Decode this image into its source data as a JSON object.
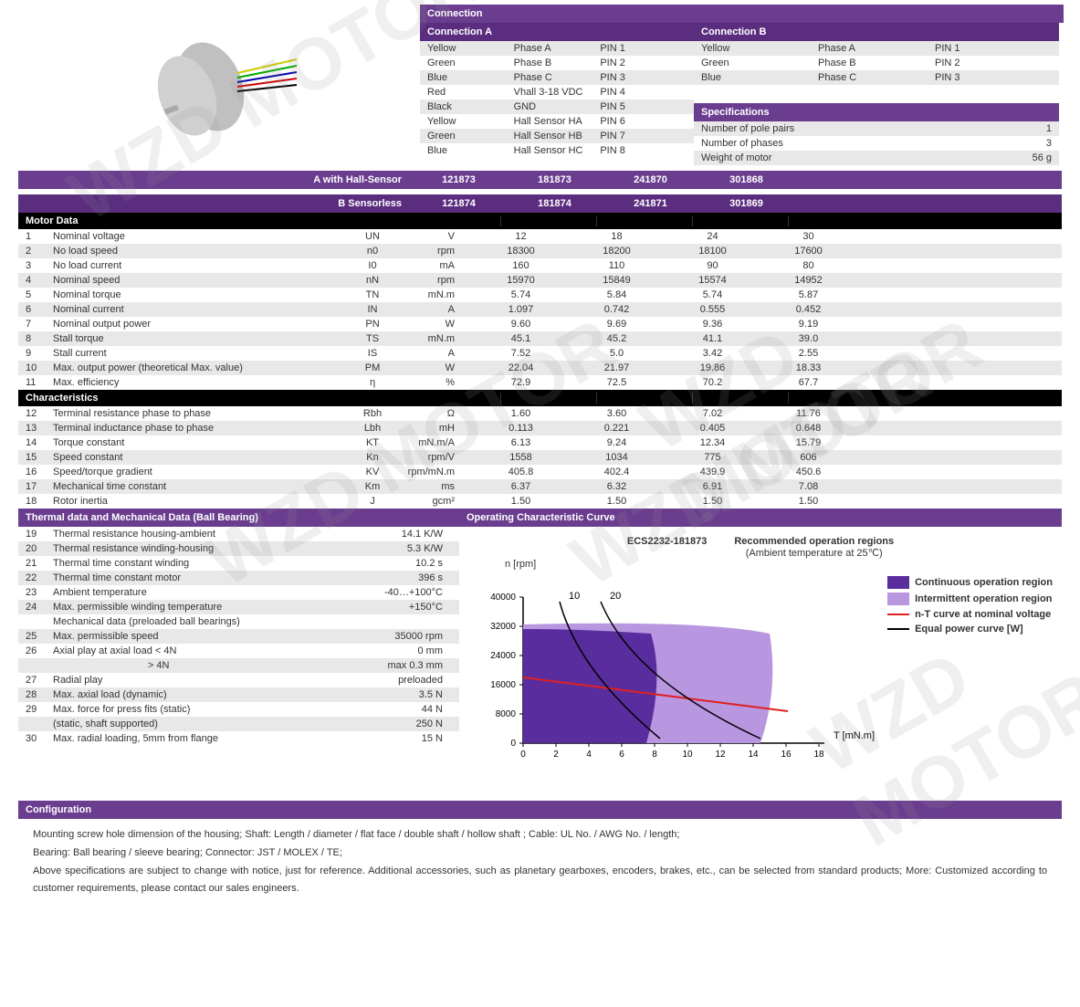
{
  "watermark_text": "WZD MOTOR",
  "connection_header": "Connection",
  "conn_a_header": "Connection A",
  "conn_b_header": "Connection B",
  "conn_a_rows": [
    {
      "color": "Yellow",
      "phase": "Phase A",
      "pin": "PIN 1"
    },
    {
      "color": "Green",
      "phase": "Phase B",
      "pin": "PIN 2"
    },
    {
      "color": "Blue",
      "phase": "Phase C",
      "pin": "PIN 3"
    },
    {
      "color": "Red",
      "phase": "Vhall 3-18 VDC",
      "pin": "PIN 4"
    },
    {
      "color": "Black",
      "phase": "GND",
      "pin": "PIN 5"
    },
    {
      "color": "Yellow",
      "phase": "Hall Sensor HA",
      "pin": "PIN 6"
    },
    {
      "color": "Green",
      "phase": "Hall Sensor HB",
      "pin": "PIN 7"
    },
    {
      "color": "Blue",
      "phase": "Hall Sensor HC",
      "pin": "PIN 8"
    }
  ],
  "conn_b_rows": [
    {
      "color": "Yellow",
      "phase": "Phase A",
      "pin": "PIN 1"
    },
    {
      "color": "Green",
      "phase": "Phase B",
      "pin": "PIN 2"
    },
    {
      "color": "Blue",
      "phase": "Phase C",
      "pin": "PIN 3"
    }
  ],
  "specifications_header": "Specifications",
  "specs": [
    {
      "label": "Number of pole pairs",
      "val": "1"
    },
    {
      "label": "Number of phases",
      "val": "3"
    },
    {
      "label": "Weight of motor",
      "val": "56 g"
    }
  ],
  "variant_a_label": "A with Hall-Sensor",
  "variant_b_label": "B Sensorless",
  "variants_a": [
    "121873",
    "181873",
    "241870",
    "301868"
  ],
  "variants_b": [
    "121874",
    "181874",
    "241871",
    "301869"
  ],
  "motor_data_header": "Motor Data",
  "motor_data": [
    {
      "n": "1",
      "name": "Nominal voltage",
      "sym": "UN",
      "unit": "V",
      "vals": [
        "12",
        "18",
        "24",
        "30"
      ]
    },
    {
      "n": "2",
      "name": "No load speed",
      "sym": "n0",
      "unit": "rpm",
      "vals": [
        "18300",
        "18200",
        "18100",
        "17600"
      ]
    },
    {
      "n": "3",
      "name": "No load current",
      "sym": "I0",
      "unit": "mA",
      "vals": [
        "160",
        "110",
        "90",
        "80"
      ]
    },
    {
      "n": "4",
      "name": "Nominal speed",
      "sym": "nN",
      "unit": "rpm",
      "vals": [
        "15970",
        "15849",
        "15574",
        "14952"
      ]
    },
    {
      "n": "5",
      "name": "Nominal torque",
      "sym": "TN",
      "unit": "mN.m",
      "vals": [
        "5.74",
        "5.84",
        "5.74",
        "5.87"
      ]
    },
    {
      "n": "6",
      "name": "Nominal current",
      "sym": "IN",
      "unit": "A",
      "vals": [
        "1.097",
        "0.742",
        "0.555",
        "0.452"
      ]
    },
    {
      "n": "7",
      "name": "Nominal output power",
      "sym": "PN",
      "unit": "W",
      "vals": [
        "9.60",
        "9.69",
        "9.36",
        "9.19"
      ]
    },
    {
      "n": "8",
      "name": "Stall torque",
      "sym": "TS",
      "unit": "mN.m",
      "vals": [
        "45.1",
        "45.2",
        "41.1",
        "39.0"
      ]
    },
    {
      "n": "9",
      "name": "Stall current",
      "sym": "IS",
      "unit": "A",
      "vals": [
        "7.52",
        "5.0",
        "3.42",
        "2.55"
      ]
    },
    {
      "n": "10",
      "name": "Max. output power (theoretical Max. value)",
      "sym": "PM",
      "unit": "W",
      "vals": [
        "22.04",
        "21.97",
        "19.86",
        "18.33"
      ]
    },
    {
      "n": "11",
      "name": "Max. efficiency",
      "sym": "η",
      "unit": "%",
      "vals": [
        "72.9",
        "72.5",
        "70.2",
        "67.7"
      ]
    }
  ],
  "characteristics_header": "Characteristics",
  "characteristics": [
    {
      "n": "12",
      "name": "Terminal resistance phase to phase",
      "sym": "Rbh",
      "unit": "Ω",
      "vals": [
        "1.60",
        "3.60",
        "7.02",
        "11.76"
      ]
    },
    {
      "n": "13",
      "name": "Terminal inductance phase to phase",
      "sym": "Lbh",
      "unit": "mH",
      "vals": [
        "0.113",
        "0.221",
        "0.405",
        "0.648"
      ]
    },
    {
      "n": "14",
      "name": "Torque constant",
      "sym": "KT",
      "unit": "mN.m/A",
      "vals": [
        "6.13",
        "9.24",
        "12.34",
        "15.79"
      ]
    },
    {
      "n": "15",
      "name": "Speed constant",
      "sym": "Kn",
      "unit": "rpm/V",
      "vals": [
        "1558",
        "1034",
        "775",
        "606"
      ]
    },
    {
      "n": "16",
      "name": "Speed/torque gradient",
      "sym": "KV",
      "unit": "rpm/mN.m",
      "vals": [
        "405.8",
        "402.4",
        "439.9",
        "450.6"
      ]
    },
    {
      "n": "17",
      "name": "Mechanical time constant",
      "sym": "Km",
      "unit": "ms",
      "vals": [
        "6.37",
        "6.32",
        "6.91",
        "7.08"
      ]
    },
    {
      "n": "18",
      "name": "Rotor inertia",
      "sym": "J",
      "unit": "gcm²",
      "vals": [
        "1.50",
        "1.50",
        "1.50",
        "1.50"
      ]
    }
  ],
  "thermal_header": "Thermal data and Mechanical Data (Ball Bearing)",
  "operating_header": "Operating Characteristic Curve",
  "thermal_rows": [
    {
      "n": "19",
      "name": "Thermal resistance housing-ambient",
      "val": "14.1 K/W"
    },
    {
      "n": "20",
      "name": "Thermal resistance winding-housing",
      "val": "5.3 K/W"
    },
    {
      "n": "21",
      "name": "Thermal time constant winding",
      "val": "10.2 s"
    },
    {
      "n": "22",
      "name": "Thermal time constant motor",
      "val": "396 s"
    },
    {
      "n": "23",
      "name": "Ambient temperature",
      "val": "-40…+100°C"
    },
    {
      "n": "24",
      "name": "Max. permissible winding temperature",
      "val": "+150°C"
    },
    {
      "n": "",
      "name": "Mechanical data (preloaded ball bearings)",
      "val": ""
    },
    {
      "n": "25",
      "name": "Max. permissible speed",
      "val": "35000 rpm"
    },
    {
      "n": "26",
      "name": "Axial play at axial load < 4N",
      "val": "0 mm"
    },
    {
      "n": "",
      "name": "                                  > 4N",
      "val": "max 0.3 mm"
    },
    {
      "n": "27",
      "name": "Radial play",
      "val": "preloaded"
    },
    {
      "n": "28",
      "name": "Max. axial load (dynamic)",
      "val": "3.5 N"
    },
    {
      "n": "29",
      "name": "Max. force for press fits (static)",
      "val": "44 N"
    },
    {
      "n": "",
      "name": "(static, shaft supported)",
      "val": "250 N"
    },
    {
      "n": "30",
      "name": "Max. radial loading, 5mm from flange",
      "val": "15 N"
    }
  ],
  "configuration_header": "Configuration",
  "config_text1": "Mounting screw hole dimension of the housing;    Shaft: Length / diameter / flat face / double shaft / hollow shaft ;    Cable: UL No. / AWG No. / length;",
  "config_text2": "Bearing: Ball bearing / sleeve bearing;    Connector: JST / MOLEX / TE;",
  "config_text3": "Above specifications are subject to change with notice, just for reference.   Additional accessories, such as planetary gearboxes, encoders, brakes, etc., can be selected from standard products; More: Customized according to customer requirements, please contact our sales engineers.",
  "chart": {
    "title1": "ECS2232-181873",
    "title2": "Recommended operation regions",
    "title3": "(Ambient temperature at 25℃)",
    "ylabel": "n [rpm]",
    "xlabel": "T [mN.m]",
    "y_ticks": [
      "0",
      "8000",
      "16000",
      "24000",
      "32000",
      "40000"
    ],
    "x_ticks": [
      "0",
      "2",
      "4",
      "6",
      "8",
      "10",
      "12",
      "14",
      "16",
      "18"
    ],
    "power_labels": [
      "10",
      "20"
    ],
    "continuous_color": "#5a2d9f",
    "intermittent_color": "#b896e0",
    "nt_color": "#e02020",
    "power_color": "#000000",
    "legend": {
      "cont": "Continuous operation region",
      "inter": "Intermittent operation region",
      "nt": "n-T curve at nominal voltage",
      "power": "Equal power curve [W]"
    }
  }
}
